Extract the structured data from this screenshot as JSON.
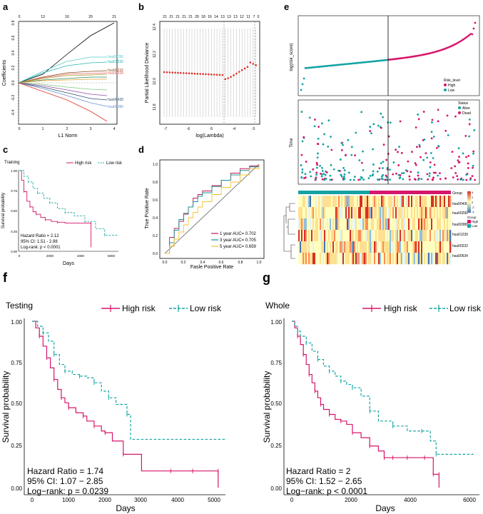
{
  "colors": {
    "high": "#d6166b",
    "low": "#14a3a3",
    "red": "#e03028",
    "grey": "#888888"
  },
  "panels": {
    "a": {
      "label": "a",
      "xlabel": "L1 Norm",
      "ylabel": "Coefficients",
      "top_ticks": [
        "0",
        "13",
        "16",
        "20",
        "21"
      ],
      "x_ticks": [
        "0",
        "1",
        "2",
        "3",
        "4"
      ],
      "y_ticks": [
        "-0.4",
        "-0.2",
        "0.0",
        "0.2",
        "0.4",
        "0.6",
        "0.8"
      ],
      "line_labels": [
        "hsa00290",
        "hsa01230",
        "hsa00232",
        "hsa00534",
        "hsa00430",
        "hsa00380"
      ]
    },
    "b": {
      "label": "b",
      "xlabel": "log(Lambda)",
      "ylabel": "Partial Likelihood Deviance",
      "top_ticks": [
        "21",
        "21",
        "21",
        "21",
        "21",
        "20",
        "18",
        "16",
        "14",
        "13",
        "13",
        "13",
        "12",
        "11",
        "7",
        "0"
      ],
      "x_ticks": [
        "-7",
        "-6",
        "-5",
        "-4",
        "-3"
      ],
      "y_ticks": [
        "11.8",
        "12.0",
        "12.2",
        "12.4"
      ]
    },
    "c": {
      "label": "c",
      "subtitle": "Training",
      "legend_high": "High risk",
      "legend_low": "Low risk",
      "xlabel": "Days",
      "ylabel": "Survival probability",
      "x_ticks": [
        "0",
        "2000",
        "4000",
        "6000"
      ],
      "y_ticks": [
        "0.00",
        "0.25",
        "0.50",
        "0.75",
        "1.00"
      ],
      "stats": [
        "Hazard Ratio = 2.12",
        "95% CI: 1.51 - 2.98",
        "Log-rank: p < 0.0001"
      ]
    },
    "d": {
      "label": "d",
      "xlabel": "Fasle Positive Rate",
      "ylabel": "True Positive Rate",
      "ticks": [
        "0.0",
        "0.2",
        "0.4",
        "0.6",
        "0.8",
        "1.0"
      ],
      "legend": [
        "1 year AUC= 0.702",
        "3 year AUC= 0.705",
        "5 year AUC= 0.659"
      ]
    },
    "e": {
      "label": "e",
      "top_ylabel": "log(risk_score)",
      "mid_ylabel": "Time",
      "risk_legend_title": "Risk_level",
      "risk_legend": [
        "High",
        "Low"
      ],
      "status_legend_title": "Status",
      "status_legend": [
        "Alive",
        "Dead"
      ],
      "heat_group_title": "Group",
      "heat_rows": [
        "hsa00430",
        "hsa00290",
        "hsa00380",
        "hsa01230",
        "hsa00232",
        "hsa00534"
      ],
      "group_legend_title": "Group",
      "group_legend": [
        "High",
        "Low"
      ],
      "scale_ticks": [
        "4",
        "2",
        "0",
        "-2",
        "-4"
      ]
    },
    "f": {
      "label": "f",
      "subtitle": "Testing",
      "legend_high": "High risk",
      "legend_low": "Low risk",
      "xlabel": "Days",
      "ylabel": "Survival probability",
      "x_ticks": [
        "0",
        "1000",
        "2000",
        "3000",
        "4000",
        "5000"
      ],
      "y_ticks": [
        "0.00",
        "0.25",
        "0.50",
        "0.75",
        "1.00"
      ],
      "stats": [
        "Hazard Ratio = 1.74",
        "95% CI: 1.07 − 2.85",
        "Log−rank: p = 0.0239"
      ]
    },
    "g": {
      "label": "g",
      "subtitle": "Whole",
      "legend_high": "High risk",
      "legend_low": "Low risk",
      "xlabel": "Days",
      "ylabel": "Survival probability",
      "x_ticks": [
        "0",
        "2000",
        "4000",
        "6000"
      ],
      "y_ticks": [
        "0.00",
        "0.25",
        "0.50",
        "0.75",
        "1.00"
      ],
      "stats": [
        "Hazard Ratio = 2",
        "95% CI: 1.52 − 2.65",
        "Log−rank: p < 0.0001"
      ]
    }
  },
  "chart_data": [
    {
      "panel": "c",
      "type": "line",
      "title": "Training",
      "xlim": [
        0,
        6500
      ],
      "ylim": [
        0,
        1
      ],
      "series": [
        {
          "name": "High risk",
          "x": [
            0,
            150,
            300,
            500,
            700,
            900,
            1100,
            1400,
            1700,
            2100,
            2500,
            3000,
            4700,
            4700
          ],
          "y": [
            1.0,
            0.88,
            0.74,
            0.62,
            0.55,
            0.49,
            0.46,
            0.42,
            0.39,
            0.37,
            0.36,
            0.35,
            0.35,
            0.05
          ]
        },
        {
          "name": "Low risk",
          "x": [
            0,
            300,
            600,
            900,
            1200,
            1600,
            2000,
            2500,
            3000,
            3600,
            4300,
            5000,
            5600,
            6500
          ],
          "y": [
            1.0,
            0.93,
            0.86,
            0.78,
            0.72,
            0.66,
            0.6,
            0.53,
            0.48,
            0.44,
            0.37,
            0.28,
            0.2,
            0.2
          ]
        }
      ]
    },
    {
      "panel": "d",
      "type": "line",
      "xlim": [
        0,
        1
      ],
      "ylim": [
        0,
        1
      ],
      "series": [
        {
          "name": "1 year AUC= 0.702",
          "x": [
            0,
            0.05,
            0.1,
            0.15,
            0.2,
            0.25,
            0.3,
            0.35,
            0.4,
            0.5,
            0.6,
            0.7,
            0.8,
            0.9,
            1.0
          ],
          "y": [
            0,
            0.18,
            0.28,
            0.36,
            0.44,
            0.52,
            0.62,
            0.66,
            0.7,
            0.76,
            0.82,
            0.9,
            0.95,
            0.98,
            1.0
          ]
        },
        {
          "name": "3 year AUC= 0.705",
          "x": [
            0,
            0.05,
            0.1,
            0.15,
            0.2,
            0.25,
            0.3,
            0.35,
            0.4,
            0.5,
            0.6,
            0.7,
            0.8,
            0.9,
            1.0
          ],
          "y": [
            0,
            0.12,
            0.26,
            0.38,
            0.45,
            0.52,
            0.58,
            0.64,
            0.68,
            0.75,
            0.82,
            0.88,
            0.93,
            0.97,
            1.0
          ]
        },
        {
          "name": "5 year AUC= 0.659",
          "x": [
            0,
            0.05,
            0.1,
            0.15,
            0.2,
            0.25,
            0.3,
            0.35,
            0.4,
            0.5,
            0.6,
            0.7,
            0.8,
            0.9,
            1.0
          ],
          "y": [
            0,
            0.08,
            0.16,
            0.24,
            0.32,
            0.4,
            0.46,
            0.52,
            0.58,
            0.66,
            0.74,
            0.8,
            0.88,
            0.95,
            1.0
          ]
        }
      ]
    },
    {
      "panel": "f",
      "type": "line",
      "title": "Testing",
      "xlim": [
        0,
        5300
      ],
      "ylim": [
        0,
        1
      ],
      "series": [
        {
          "name": "High risk",
          "x": [
            0,
            100,
            200,
            300,
            400,
            500,
            600,
            700,
            800,
            900,
            1000,
            1200,
            1400,
            1500,
            1700,
            1900,
            2000,
            2200,
            2500,
            3000,
            3800,
            4400,
            5100,
            5100
          ],
          "y": [
            1.0,
            0.96,
            0.91,
            0.85,
            0.78,
            0.72,
            0.65,
            0.59,
            0.54,
            0.51,
            0.48,
            0.45,
            0.43,
            0.4,
            0.37,
            0.34,
            0.33,
            0.28,
            0.2,
            0.1,
            0.1,
            0.1,
            0.1,
            0.0
          ]
        },
        {
          "name": "Low risk",
          "x": [
            0,
            150,
            300,
            450,
            600,
            750,
            900,
            1100,
            1300,
            1500,
            1700,
            1900,
            2100,
            2300,
            2600,
            2700,
            5300
          ],
          "y": [
            1.0,
            0.97,
            0.93,
            0.88,
            0.8,
            0.74,
            0.7,
            0.68,
            0.67,
            0.66,
            0.63,
            0.58,
            0.54,
            0.5,
            0.44,
            0.29,
            0.29
          ]
        }
      ]
    },
    {
      "panel": "g",
      "type": "line",
      "title": "Whole",
      "xlim": [
        0,
        6500
      ],
      "ylim": [
        0,
        1
      ],
      "series": [
        {
          "name": "High risk",
          "x": [
            0,
            100,
            200,
            300,
            400,
            500,
            600,
            700,
            800,
            900,
            1000,
            1100,
            1300,
            1500,
            1700,
            1900,
            2100,
            2400,
            2700,
            3000,
            3200,
            3500,
            4000,
            4600,
            4900,
            5100,
            5100
          ],
          "y": [
            1.0,
            0.96,
            0.91,
            0.86,
            0.8,
            0.74,
            0.68,
            0.63,
            0.58,
            0.54,
            0.5,
            0.47,
            0.44,
            0.41,
            0.4,
            0.38,
            0.33,
            0.3,
            0.25,
            0.22,
            0.18,
            0.18,
            0.18,
            0.18,
            0.08,
            0.08,
            0.0
          ]
        },
        {
          "name": "Low risk",
          "x": [
            0,
            100,
            200,
            300,
            500,
            700,
            900,
            1100,
            1300,
            1500,
            1700,
            1900,
            2100,
            2400,
            2700,
            3000,
            3500,
            4000,
            4500,
            4800,
            5000,
            6300
          ],
          "y": [
            1.0,
            0.97,
            0.94,
            0.91,
            0.87,
            0.82,
            0.77,
            0.73,
            0.7,
            0.67,
            0.64,
            0.62,
            0.6,
            0.55,
            0.46,
            0.4,
            0.37,
            0.34,
            0.34,
            0.28,
            0.2,
            0.2
          ]
        }
      ]
    }
  ]
}
